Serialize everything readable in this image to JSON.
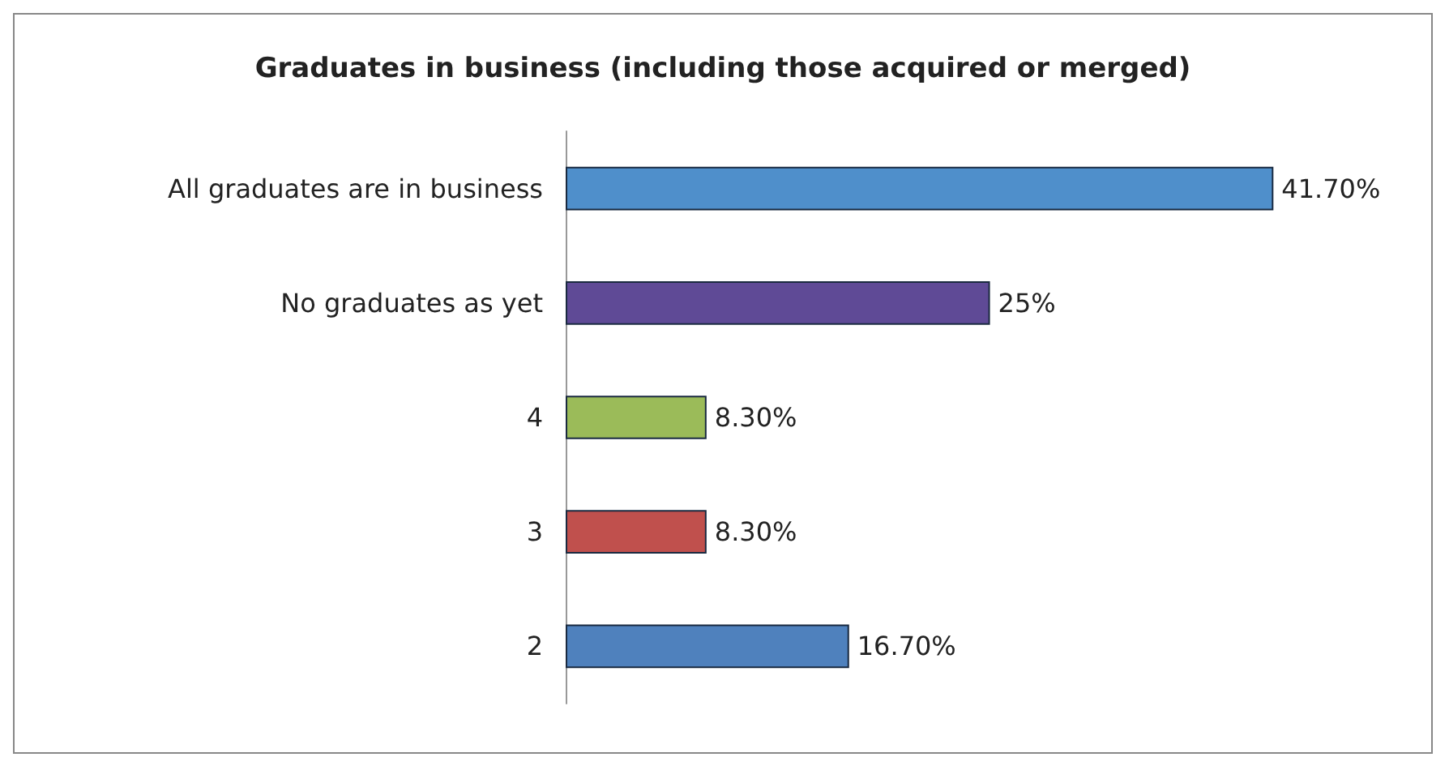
{
  "chart_data": {
    "type": "bar",
    "orientation": "horizontal",
    "title": "Graduates in business (including those acquired or merged)",
    "categories": [
      "All graduates are in business",
      "No graduates as yet",
      "4",
      "3",
      "2"
    ],
    "values": [
      41.7,
      25,
      8.3,
      8.3,
      16.7
    ],
    "colors": [
      "#4f8fcb",
      "#5f4a96",
      "#9bbb59",
      "#c0504d",
      "#4f81bd"
    ],
    "value_labels": [
      "41.70%",
      "25%",
      "8.30%",
      "8.30%",
      "16.70%"
    ]
  }
}
